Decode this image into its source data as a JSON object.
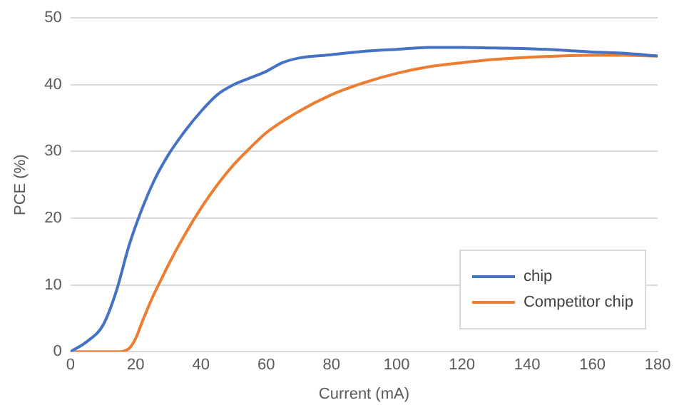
{
  "chart_data": {
    "type": "line",
    "xlabel": "Current (mA)",
    "ylabel": "PCE (%)",
    "xlim": [
      0,
      180
    ],
    "xticks": [
      0,
      20,
      40,
      60,
      80,
      100,
      120,
      140,
      160,
      180
    ],
    "ylim": [
      0,
      50
    ],
    "yticks": [
      0,
      10,
      20,
      30,
      40,
      50
    ],
    "grid": "y",
    "legend": "bottom right",
    "marker": "none",
    "line_style": "solid",
    "series": [
      {
        "name": "chip",
        "color": "#4472c4",
        "x": [
          0,
          5,
          10,
          14,
          18,
          22,
          26,
          30,
          35,
          40,
          45,
          50,
          55,
          60,
          65,
          70,
          80,
          90,
          100,
          110,
          120,
          130,
          140,
          150,
          160,
          170,
          180
        ],
        "values": [
          0,
          1.5,
          4,
          9,
          16,
          21.5,
          26,
          29.5,
          33,
          36,
          38.5,
          40,
          41,
          42,
          43.3,
          44,
          44.5,
          45,
          45.3,
          45.6,
          45.6,
          45.5,
          45.4,
          45.2,
          44.9,
          44.7,
          44.3
        ]
      },
      {
        "name": "Competitor chip",
        "color": "#ed7d31",
        "x": [
          0,
          15,
          18,
          20,
          22,
          25,
          28,
          30,
          35,
          40,
          45,
          50,
          55,
          60,
          70,
          80,
          90,
          100,
          110,
          120,
          130,
          140,
          150,
          160,
          170,
          180
        ],
        "values": [
          0,
          0,
          0.5,
          2,
          4.5,
          8,
          11,
          13,
          17.5,
          21.5,
          25,
          28,
          30.5,
          32.8,
          36,
          38.5,
          40.3,
          41.7,
          42.7,
          43.3,
          43.8,
          44.1,
          44.3,
          44.4,
          44.4,
          44.3
        ]
      }
    ]
  }
}
